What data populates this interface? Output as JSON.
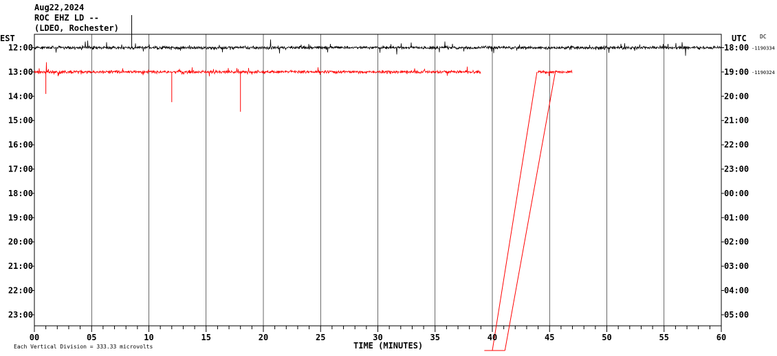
{
  "header": {
    "date": "Aug22,2024",
    "station": "ROC EHZ LD --",
    "network": "(LDEO, Rochester)"
  },
  "chart_data": {
    "type": "line",
    "left_axis_label": "EST",
    "right_axis_label": "UTC",
    "dc_label": "DC",
    "xlabel": "TIME (MINUTES)",
    "x_ticks": [
      "00",
      "05",
      "10",
      "15",
      "20",
      "25",
      "30",
      "35",
      "40",
      "45",
      "50",
      "55",
      "60"
    ],
    "xlim": [
      0,
      60
    ],
    "rows_est": [
      "12:00",
      "13:00",
      "14:00",
      "15:00",
      "16:00",
      "17:00",
      "18:00",
      "19:00",
      "20:00",
      "21:00",
      "22:00",
      "23:00"
    ],
    "rows_utc": [
      "18:00",
      "19:00",
      "20:00",
      "21:00",
      "22:00",
      "23:00",
      "00:00",
      "01:00",
      "02:00",
      "03:00",
      "04:00",
      "05:00"
    ],
    "dc_values": [
      "-1190334",
      "-1190324"
    ],
    "footer": "Each Vertical Division =  333.33 microvolts",
    "colors": {
      "trace_1": "#000000",
      "trace_2": "#ff0000",
      "grid": "#000000"
    },
    "series": [
      {
        "row": 0,
        "color": "#000000",
        "x_start": 0,
        "x_end": 60
      },
      {
        "row": 1,
        "color": "#ff0000",
        "x_start": 0,
        "x_end": 39
      },
      {
        "row": 1,
        "color": "#ff0000",
        "x_start": 44,
        "x_end": 47
      }
    ]
  }
}
